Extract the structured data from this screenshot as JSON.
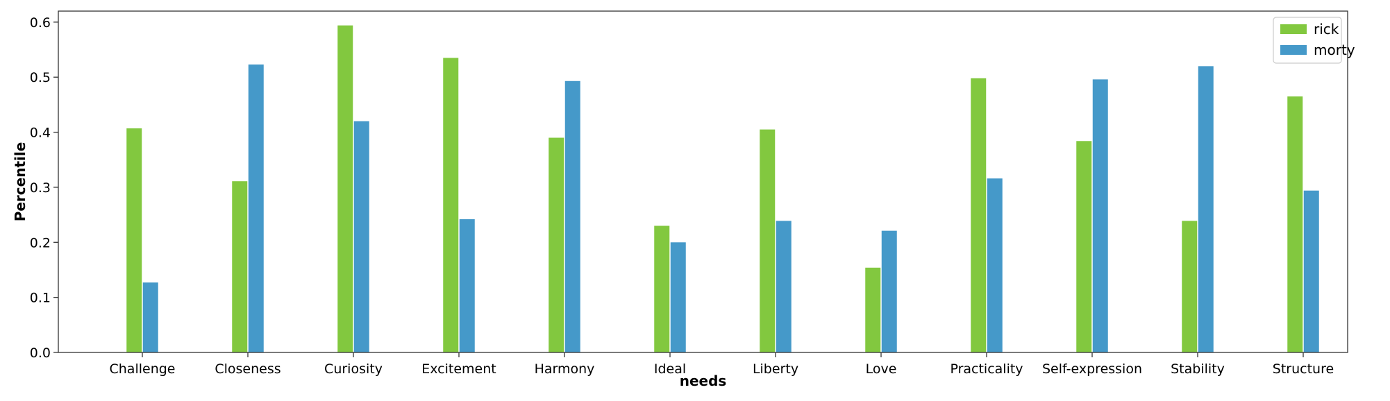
{
  "chart_data": {
    "type": "bar",
    "xlabel": "needs",
    "ylabel": "Percentile",
    "ylim": [
      0,
      0.62
    ],
    "yticks": [
      "0.0",
      "0.1",
      "0.2",
      "0.3",
      "0.4",
      "0.5",
      "0.6"
    ],
    "grid": false,
    "legend_position": "top-right",
    "categories": [
      "Challenge",
      "Closeness",
      "Curiosity",
      "Excitement",
      "Harmony",
      "Ideal",
      "Liberty",
      "Love",
      "Practicality",
      "Self-expression",
      "Stability",
      "Structure"
    ],
    "series": [
      {
        "name": "rick",
        "color": "#82c83f",
        "values": [
          0.407,
          0.311,
          0.594,
          0.535,
          0.39,
          0.23,
          0.405,
          0.154,
          0.498,
          0.384,
          0.239,
          0.465
        ]
      },
      {
        "name": "morty",
        "color": "#4599c9",
        "values": [
          0.127,
          0.523,
          0.42,
          0.242,
          0.493,
          0.2,
          0.239,
          0.221,
          0.316,
          0.496,
          0.52,
          0.294
        ]
      }
    ]
  }
}
